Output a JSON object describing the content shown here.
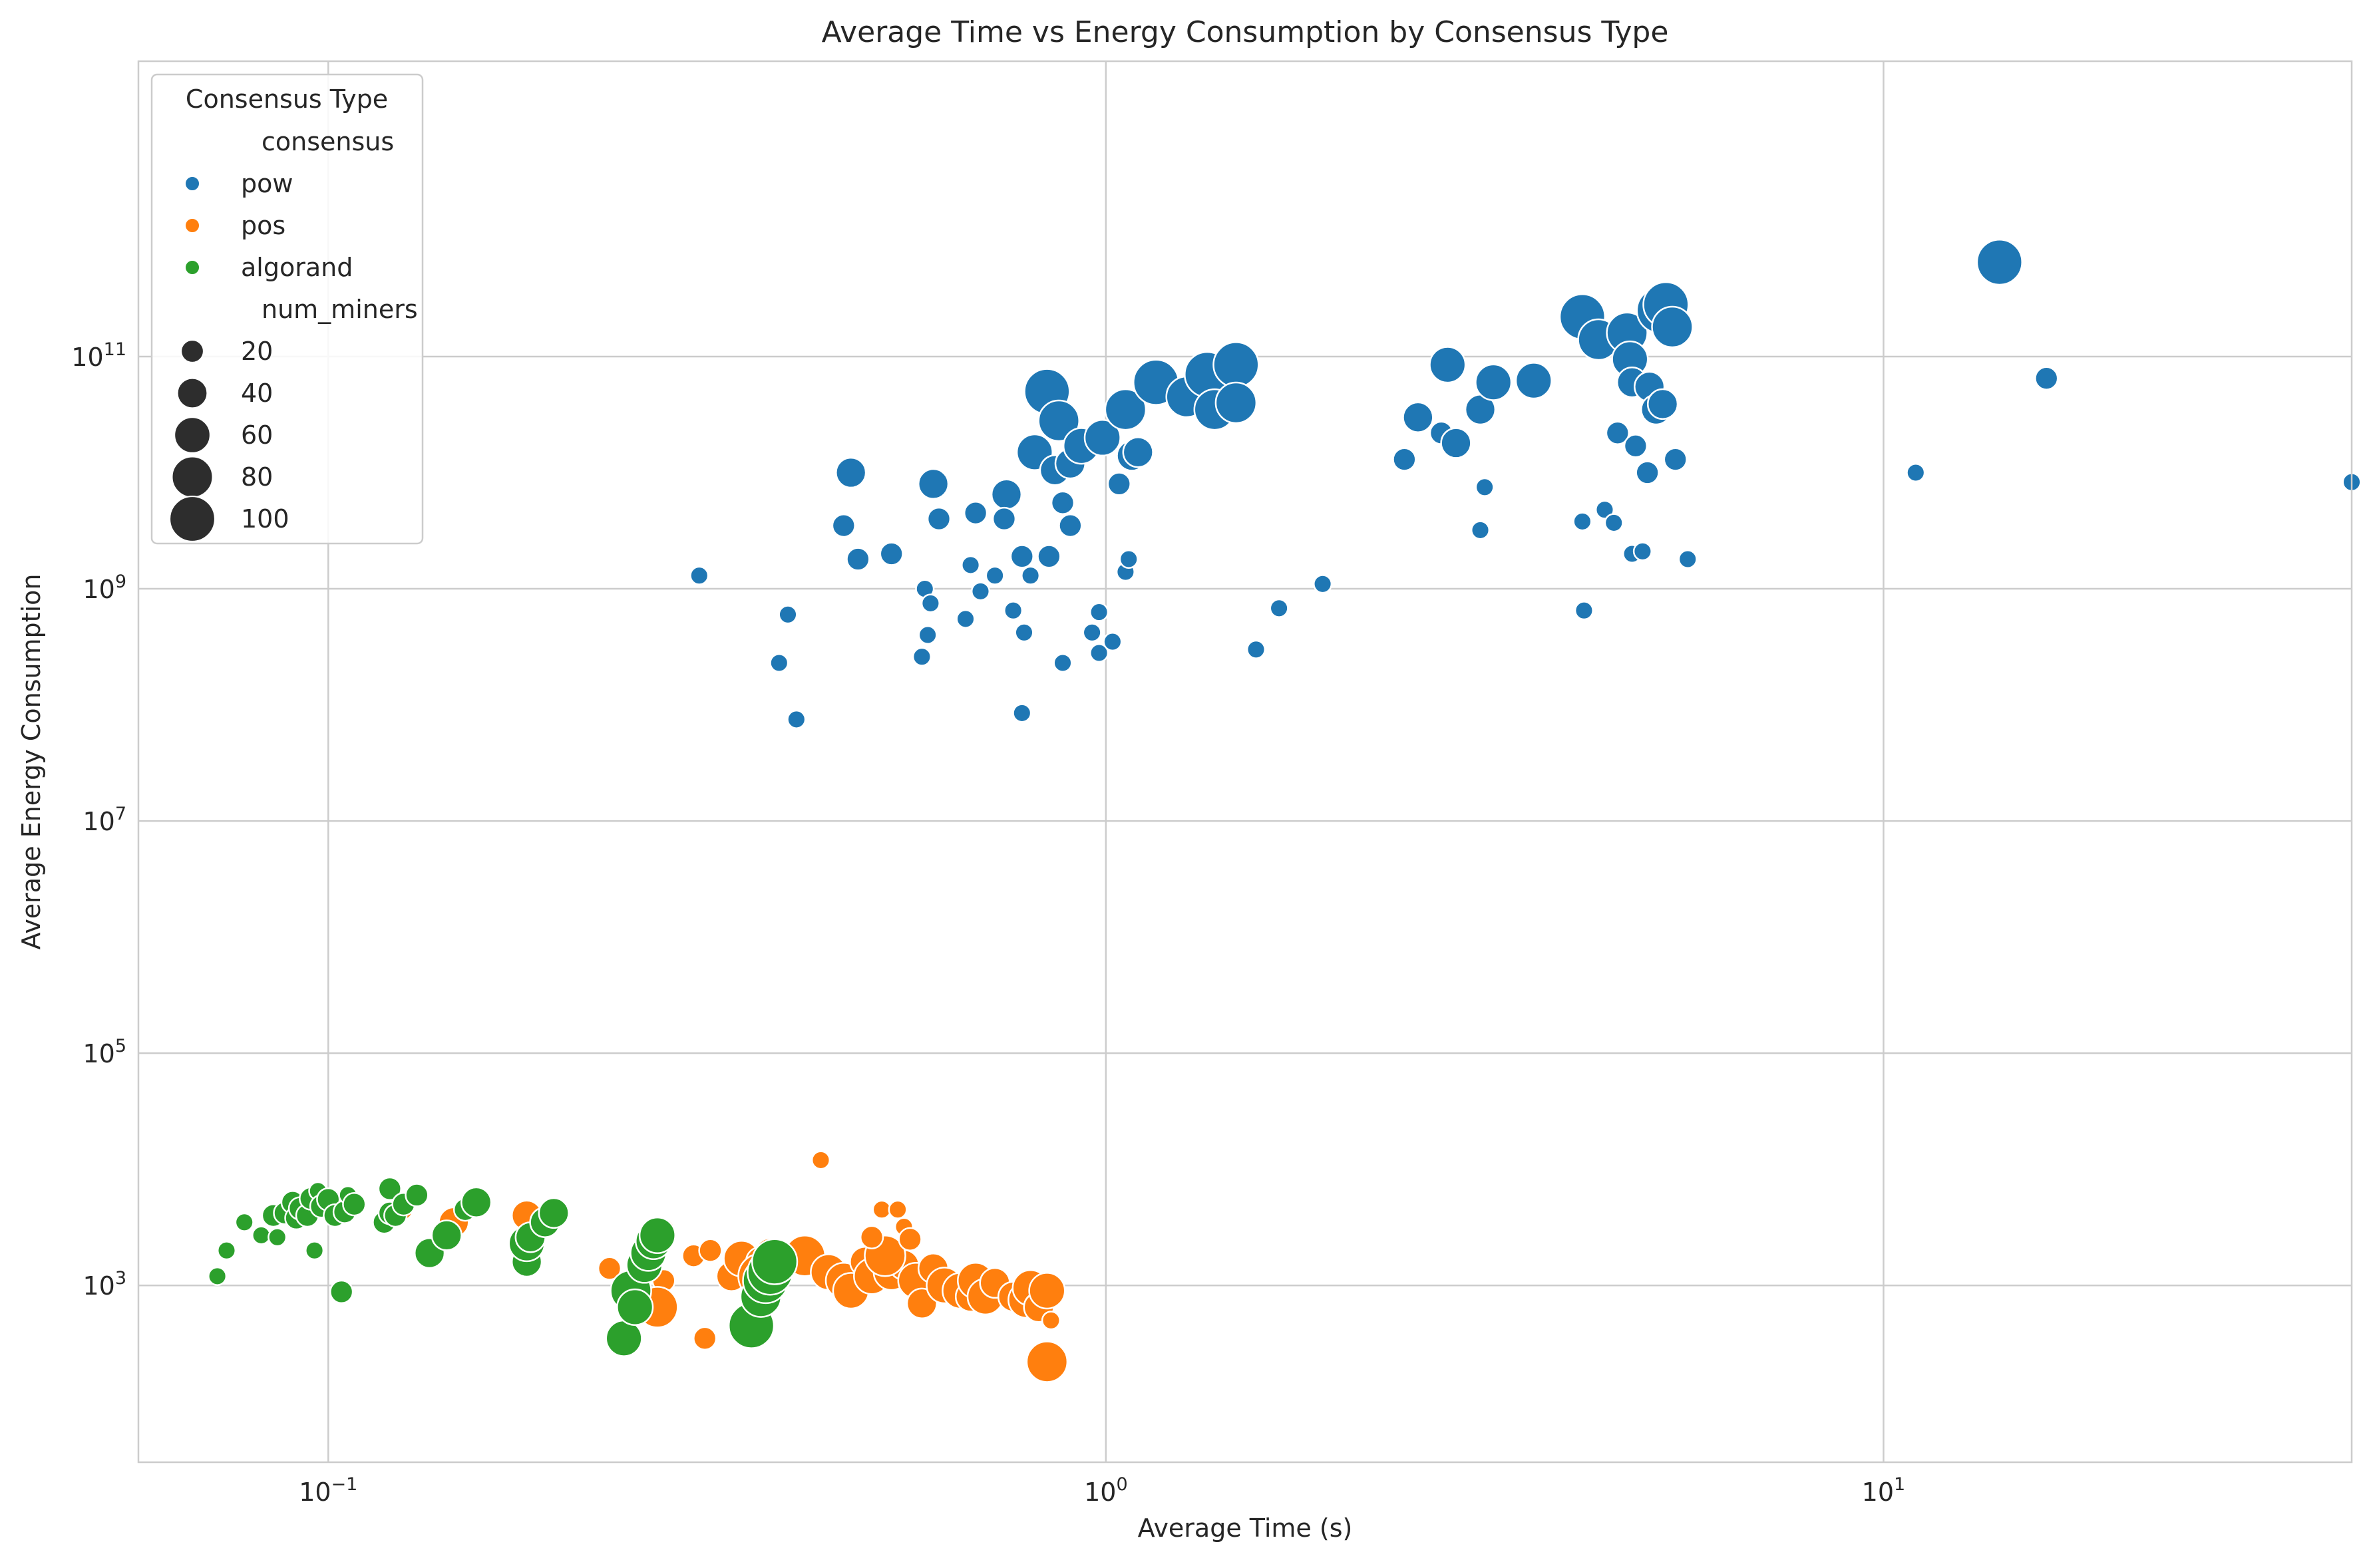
{
  "chart_data": {
    "type": "scatter",
    "title": "Average Time vs Energy Consumption by Consensus Type",
    "xlabel": "Average Time (s)",
    "ylabel": "Average Energy Consumption",
    "xscale": "log",
    "yscale": "log",
    "xlim": [
      0.057,
      40
    ],
    "ylim": [
      30,
      35000000000000
    ],
    "x_ticks": [
      {
        "value": 0.1,
        "label": "10",
        "exp": "−1"
      },
      {
        "value": 1,
        "label": "10",
        "exp": "0"
      },
      {
        "value": 10,
        "label": "10",
        "exp": "1"
      }
    ],
    "y_ticks": [
      {
        "value": 1000,
        "label": "10",
        "exp": "3"
      },
      {
        "value": 100000,
        "label": "10",
        "exp": "5"
      },
      {
        "value": 10000000,
        "label": "10",
        "exp": "7"
      },
      {
        "value": 1000000000,
        "label": "10",
        "exp": "9"
      },
      {
        "value": 100000000000,
        "label": "10",
        "exp": "11"
      }
    ],
    "grid": true,
    "legend": {
      "title": "Consensus Type",
      "placement": "top-left",
      "hue_header": "consensus",
      "size_header": "num_miners",
      "size_entries": [
        {
          "label": "20",
          "value": 20
        },
        {
          "label": "40",
          "value": 40
        },
        {
          "label": "60",
          "value": 60
        },
        {
          "label": "80",
          "value": 80
        },
        {
          "label": "100",
          "value": 100
        }
      ]
    },
    "size_field": "num_miners",
    "series": [
      {
        "name": "pow",
        "color": "#1f77b4",
        "points": [
          [
            0.3,
            1300000000.0,
            10
          ],
          [
            0.38,
            230000000.0,
            10
          ],
          [
            0.39,
            600000000.0,
            10
          ],
          [
            0.4,
            75000000.0,
            10
          ],
          [
            0.46,
            3500000000.0,
            20
          ],
          [
            0.47,
            10000000000.0,
            40
          ],
          [
            0.48,
            1800000000.0,
            20
          ],
          [
            0.53,
            2000000000.0,
            20
          ],
          [
            0.58,
            260000000.0,
            10
          ],
          [
            0.585,
            1000000000.0,
            10
          ],
          [
            0.595,
            750000000.0,
            10
          ],
          [
            0.59,
            400000000.0,
            10
          ],
          [
            0.6,
            8000000000.0,
            40
          ],
          [
            0.61,
            4000000000.0,
            20
          ],
          [
            0.66,
            550000000.0,
            10
          ],
          [
            0.67,
            1600000000.0,
            10
          ],
          [
            0.68,
            4500000000.0,
            20
          ],
          [
            0.69,
            950000000.0,
            10
          ],
          [
            0.72,
            1300000000.0,
            10
          ],
          [
            0.745,
            6500000000.0,
            40
          ],
          [
            0.74,
            4000000000.0,
            20
          ],
          [
            0.76,
            650000000.0,
            10
          ],
          [
            0.78,
            1900000000.0,
            20
          ],
          [
            0.785,
            420000000.0,
            10
          ],
          [
            0.78,
            85000000.0,
            10
          ],
          [
            0.8,
            1300000000.0,
            10
          ],
          [
            0.81,
            15000000000.0,
            60
          ],
          [
            0.84,
            50000000000.0,
            100
          ],
          [
            0.845,
            1900000000.0,
            20
          ],
          [
            0.86,
            10500000000.0,
            40
          ],
          [
            0.87,
            28000000000.0,
            80
          ],
          [
            0.88,
            5500000000.0,
            20
          ],
          [
            0.88,
            230000000.0,
            10
          ],
          [
            0.9,
            3500000000.0,
            20
          ],
          [
            0.9,
            12000000000.0,
            40
          ],
          [
            0.93,
            17000000000.0,
            60
          ],
          [
            0.96,
            420000000.0,
            10
          ],
          [
            0.98,
            630000000.0,
            10
          ],
          [
            0.98,
            280000000.0,
            10
          ],
          [
            0.99,
            20000000000.0,
            60
          ],
          [
            1.02,
            350000000.0,
            10
          ],
          [
            1.04,
            8000000000.0,
            20
          ],
          [
            1.06,
            35000000000.0,
            80
          ],
          [
            1.06,
            1400000000.0,
            10
          ],
          [
            1.07,
            1800000000.0,
            10
          ],
          [
            1.08,
            14000000000.0,
            40
          ],
          [
            1.1,
            15000000000.0,
            40
          ],
          [
            1.16,
            60000000000.0,
            100
          ],
          [
            1.27,
            45000000000.0,
            80
          ],
          [
            1.35,
            70000000000.0,
            100
          ],
          [
            1.38,
            35000000000.0,
            80
          ],
          [
            1.47,
            85000000000.0,
            100
          ],
          [
            1.47,
            40000000000.0,
            80
          ],
          [
            1.56,
            300000000.0,
            10
          ],
          [
            1.67,
            680000000.0,
            10
          ],
          [
            1.9,
            1100000000.0,
            10
          ],
          [
            2.42,
            13000000000.0,
            20
          ],
          [
            2.52,
            30000000000.0,
            40
          ],
          [
            2.7,
            22000000000.0,
            20
          ],
          [
            2.75,
            85000000000.0,
            60
          ],
          [
            2.82,
            18000000000.0,
            40
          ],
          [
            3.03,
            35000000000.0,
            40
          ],
          [
            3.03,
            3200000000.0,
            10
          ],
          [
            3.07,
            7500000000.0,
            10
          ],
          [
            3.15,
            60000000000.0,
            60
          ],
          [
            3.55,
            62000000000.0,
            60
          ],
          [
            4.1,
            220000000000.0,
            100
          ],
          [
            4.1,
            3800000000.0,
            10
          ],
          [
            4.12,
            650000000.0,
            10
          ],
          [
            4.3,
            140000000000.0,
            80
          ],
          [
            4.38,
            4800000000.0,
            10
          ],
          [
            4.5,
            3700000000.0,
            10
          ],
          [
            4.55,
            22000000000.0,
            20
          ],
          [
            4.68,
            160000000000.0,
            80
          ],
          [
            4.72,
            95000000000.0,
            60
          ],
          [
            4.75,
            60000000000.0,
            40
          ],
          [
            4.75,
            2000000000.0,
            10
          ],
          [
            4.8,
            17000000000.0,
            20
          ],
          [
            4.9,
            2100000000.0,
            10
          ],
          [
            4.97,
            10000000000.0,
            20
          ],
          [
            5.0,
            55000000000.0,
            40
          ],
          [
            5.1,
            35000000000.0,
            40
          ],
          [
            5.2,
            39000000000.0,
            40
          ],
          [
            5.15,
            250000000000.0,
            100
          ],
          [
            5.25,
            280000000000.0,
            100
          ],
          [
            5.35,
            180000000000.0,
            80
          ],
          [
            5.4,
            13000000000.0,
            20
          ],
          [
            5.6,
            1800000000.0,
            10
          ],
          [
            11.0,
            10000000000.0,
            10
          ],
          [
            14.1,
            650000000000.0,
            100
          ],
          [
            16.2,
            65000000000.0,
            20
          ],
          [
            40.0,
            8300000000.0,
            10
          ]
        ]
      },
      {
        "name": "pos",
        "color": "#ff7f0e",
        "points": [
          [
            0.125,
            4400.0,
            10
          ],
          [
            0.145,
            3500.0,
            40
          ],
          [
            0.18,
            4000.0,
            40
          ],
          [
            0.23,
            1400.0,
            20
          ],
          [
            0.25,
            1200.0,
            20
          ],
          [
            0.265,
            2500.0,
            20
          ],
          [
            0.27,
            1100.0,
            20
          ],
          [
            0.27,
            3000.0,
            20
          ],
          [
            0.265,
            650.0,
            80
          ],
          [
            0.295,
            1800.0,
            20
          ],
          [
            0.305,
            350.0,
            20
          ],
          [
            0.31,
            2000.0,
            20
          ],
          [
            0.33,
            1200.0,
            40
          ],
          [
            0.34,
            1700.0,
            60
          ],
          [
            0.36,
            1600.0,
            40
          ],
          [
            0.37,
            1900.0,
            40
          ],
          [
            0.36,
            1200.0,
            100
          ],
          [
            0.38,
            1600.0,
            40
          ],
          [
            0.41,
            1800.0,
            80
          ],
          [
            0.43,
            12000.0,
            10
          ],
          [
            0.44,
            1300.0,
            60
          ],
          [
            0.46,
            1100.0,
            60
          ],
          [
            0.47,
            900.0,
            60
          ],
          [
            0.49,
            1600.0,
            40
          ],
          [
            0.5,
            1200.0,
            60
          ],
          [
            0.53,
            1300.0,
            60
          ],
          [
            0.55,
            1500.0,
            40
          ],
          [
            0.52,
            1800.0,
            80
          ],
          [
            0.5,
            2600.0,
            20
          ],
          [
            0.515,
            4500.0,
            10
          ],
          [
            0.54,
            4500.0,
            10
          ],
          [
            0.55,
            3200.0,
            10
          ],
          [
            0.56,
            2500.0,
            20
          ],
          [
            0.57,
            1100.0,
            60
          ],
          [
            0.58,
            700.0,
            40
          ],
          [
            0.6,
            1400.0,
            40
          ],
          [
            0.62,
            1000.0,
            60
          ],
          [
            0.65,
            900.0,
            60
          ],
          [
            0.67,
            800.0,
            40
          ],
          [
            0.68,
            1100.0,
            60
          ],
          [
            0.7,
            800.0,
            60
          ],
          [
            0.72,
            1050.0,
            40
          ],
          [
            0.76,
            800.0,
            40
          ],
          [
            0.79,
            750.0,
            60
          ],
          [
            0.8,
            950.0,
            60
          ],
          [
            0.82,
            650.0,
            40
          ],
          [
            0.84,
            900.0,
            60
          ],
          [
            0.85,
            500.0,
            10
          ],
          [
            0.84,
            220.0,
            80
          ]
        ]
      },
      {
        "name": "algorand",
        "color": "#2ca02c",
        "points": [
          [
            0.072,
            1200.0,
            10
          ],
          [
            0.074,
            2000.0,
            10
          ],
          [
            0.078,
            3500.0,
            10
          ],
          [
            0.082,
            2700.0,
            10
          ],
          [
            0.085,
            4000.0,
            20
          ],
          [
            0.086,
            2600.0,
            10
          ],
          [
            0.088,
            4200.0,
            20
          ],
          [
            0.09,
            5200.0,
            20
          ],
          [
            0.091,
            3800.0,
            20
          ],
          [
            0.092,
            4600.0,
            20
          ],
          [
            0.094,
            4000.0,
            20
          ],
          [
            0.095,
            5600.0,
            20
          ],
          [
            0.096,
            2000.0,
            10
          ],
          [
            0.097,
            6500.0,
            10
          ],
          [
            0.098,
            4800.0,
            20
          ],
          [
            0.1,
            5500.0,
            20
          ],
          [
            0.102,
            4000.0,
            20
          ],
          [
            0.104,
            880.0,
            20
          ],
          [
            0.105,
            4300.0,
            20
          ],
          [
            0.106,
            6000.0,
            10
          ],
          [
            0.108,
            5000.0,
            20
          ],
          [
            0.118,
            3500.0,
            20
          ],
          [
            0.12,
            4200.0,
            20
          ],
          [
            0.12,
            6800.0,
            20
          ],
          [
            0.122,
            4000.0,
            20
          ],
          [
            0.125,
            5000.0,
            20
          ],
          [
            0.13,
            6000.0,
            20
          ],
          [
            0.135,
            1900.0,
            40
          ],
          [
            0.142,
            2700.0,
            40
          ],
          [
            0.15,
            4500.0,
            20
          ],
          [
            0.155,
            5200.0,
            40
          ],
          [
            0.18,
            1600.0,
            40
          ],
          [
            0.18,
            2300.0,
            60
          ],
          [
            0.182,
            2600.0,
            40
          ],
          [
            0.19,
            3500.0,
            40
          ],
          [
            0.195,
            4200.0,
            40
          ],
          [
            0.24,
            350.0,
            60
          ],
          [
            0.245,
            900.0,
            80
          ],
          [
            0.248,
            650.0,
            60
          ],
          [
            0.255,
            1500.0,
            60
          ],
          [
            0.258,
            1900.0,
            60
          ],
          [
            0.262,
            2400.0,
            60
          ],
          [
            0.265,
            2700.0,
            60
          ],
          [
            0.35,
            450.0,
            100
          ],
          [
            0.36,
            800.0,
            80
          ],
          [
            0.365,
            1100.0,
            100
          ],
          [
            0.37,
            1300.0,
            100
          ],
          [
            0.375,
            1600.0,
            100
          ]
        ]
      }
    ]
  }
}
